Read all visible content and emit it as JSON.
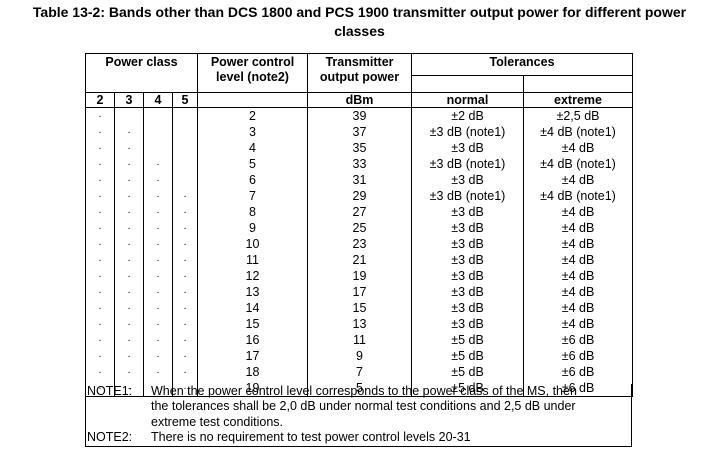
{
  "caption_line1": "Table 13-2: Bands other than DCS 1800 and PCS 1900 transmitter output power for different power",
  "caption_line2": "classes",
  "headers": {
    "power_class": "Power class",
    "pcl_line1": "Power control",
    "pcl_line2": "level (note2)",
    "tx_line1": "Transmitter",
    "tx_line2": "output power",
    "tolerances": "Tolerances",
    "normal": "normal",
    "extreme": "extreme",
    "dbm": "dBm",
    "classes": [
      "2",
      "3",
      "4",
      "5"
    ]
  },
  "dot_glyph": "·",
  "rows": [
    {
      "pcl": "2",
      "power": "39",
      "normal": "±2 dB",
      "extreme": "±2,5 dB",
      "dots": [
        1,
        0,
        0,
        0
      ]
    },
    {
      "pcl": "3",
      "power": "37",
      "normal": "±3 dB (note1)",
      "extreme": "±4 dB (note1)",
      "dots": [
        1,
        1,
        0,
        0
      ]
    },
    {
      "pcl": "4",
      "power": "35",
      "normal": "±3 dB",
      "extreme": "±4 dB",
      "dots": [
        1,
        1,
        0,
        0
      ]
    },
    {
      "pcl": "5",
      "power": "33",
      "normal": "±3 dB (note1)",
      "extreme": "±4 dB (note1)",
      "dots": [
        1,
        1,
        1,
        0
      ]
    },
    {
      "pcl": "6",
      "power": "31",
      "normal": "±3 dB",
      "extreme": "±4 dB",
      "dots": [
        1,
        1,
        1,
        0
      ]
    },
    {
      "pcl": "7",
      "power": "29",
      "normal": "±3 dB (note1)",
      "extreme": "±4 dB (note1)",
      "dots": [
        1,
        1,
        1,
        1
      ]
    },
    {
      "pcl": "8",
      "power": "27",
      "normal": "±3 dB",
      "extreme": "±4 dB",
      "dots": [
        1,
        1,
        1,
        1
      ]
    },
    {
      "pcl": "9",
      "power": "25",
      "normal": "±3 dB",
      "extreme": "±4 dB",
      "dots": [
        1,
        1,
        1,
        1
      ]
    },
    {
      "pcl": "10",
      "power": "23",
      "normal": "±3 dB",
      "extreme": "±4 dB",
      "dots": [
        1,
        1,
        1,
        1
      ]
    },
    {
      "pcl": "11",
      "power": "21",
      "normal": "±3 dB",
      "extreme": "±4 dB",
      "dots": [
        1,
        1,
        1,
        1
      ]
    },
    {
      "pcl": "12",
      "power": "19",
      "normal": "±3 dB",
      "extreme": "±4 dB",
      "dots": [
        1,
        1,
        1,
        1
      ]
    },
    {
      "pcl": "13",
      "power": "17",
      "normal": "±3 dB",
      "extreme": "±4 dB",
      "dots": [
        1,
        1,
        1,
        1
      ]
    },
    {
      "pcl": "14",
      "power": "15",
      "normal": "±3 dB",
      "extreme": "±4 dB",
      "dots": [
        1,
        1,
        1,
        1
      ]
    },
    {
      "pcl": "15",
      "power": "13",
      "normal": "±3 dB",
      "extreme": "±4 dB",
      "dots": [
        1,
        1,
        1,
        1
      ]
    },
    {
      "pcl": "16",
      "power": "11",
      "normal": "±5 dB",
      "extreme": "±6 dB",
      "dots": [
        1,
        1,
        1,
        1
      ]
    },
    {
      "pcl": "17",
      "power": "9",
      "normal": "±5 dB",
      "extreme": "±6 dB",
      "dots": [
        1,
        1,
        1,
        1
      ]
    },
    {
      "pcl": "18",
      "power": "7",
      "normal": "±5 dB",
      "extreme": "±6 dB",
      "dots": [
        1,
        1,
        1,
        1
      ]
    },
    {
      "pcl": "19",
      "power": "5",
      "normal": "±5 dB",
      "extreme": "±6 dB",
      "dots": [
        1,
        1,
        1,
        1
      ]
    }
  ],
  "notes": [
    {
      "label": "NOTE1:",
      "lines": [
        "When the power control level corresponds to the power class of the MS, then",
        "the tolerances shall be 2,0 dB under normal test conditions and 2,5 dB under",
        "extreme test conditions."
      ]
    },
    {
      "label": "NOTE2:",
      "lines": [
        "There is no requirement to test power control levels 20-31"
      ]
    }
  ]
}
